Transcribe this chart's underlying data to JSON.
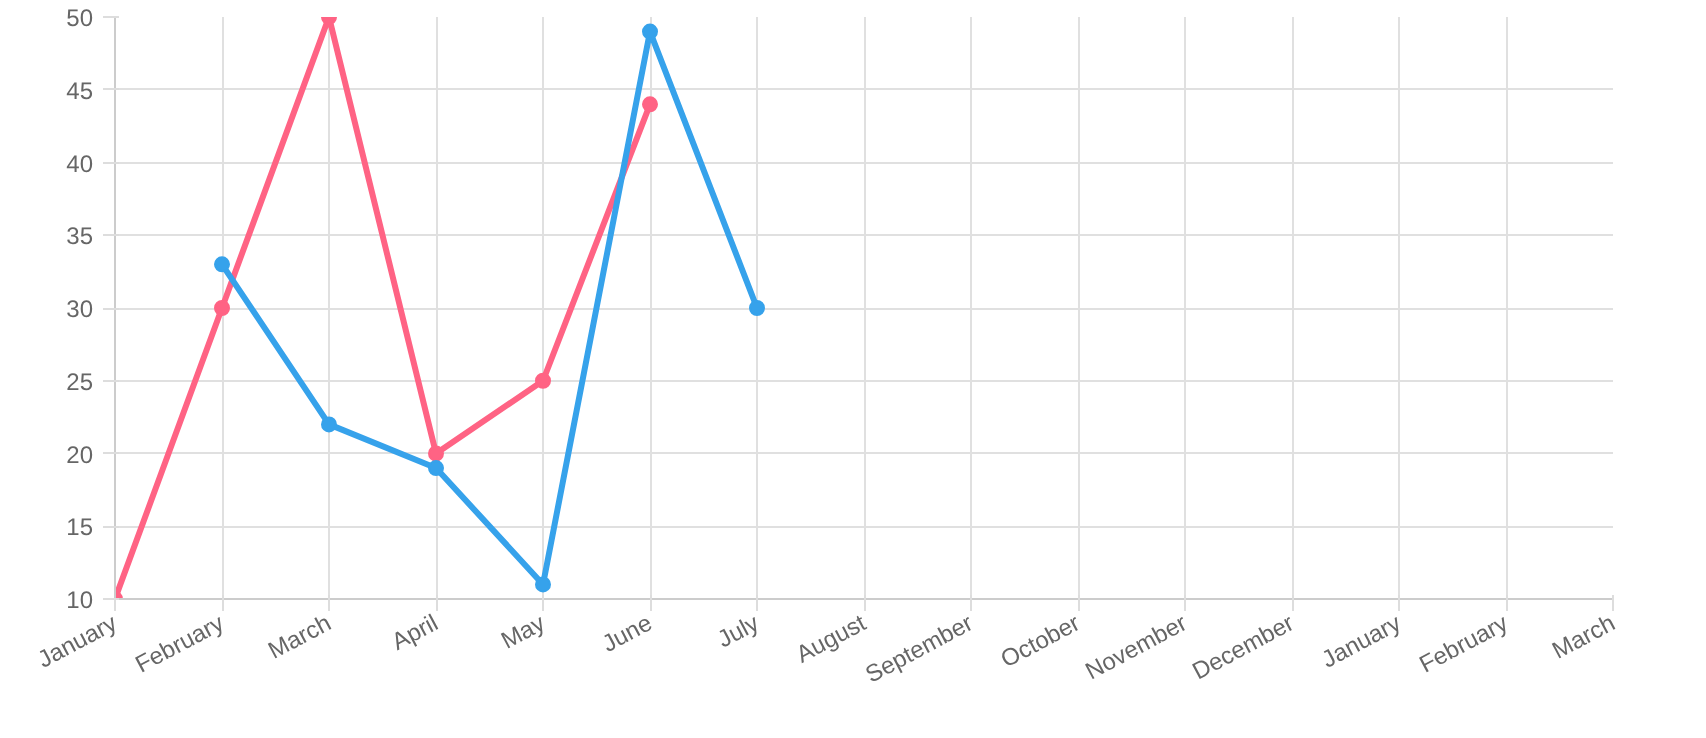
{
  "chart_data": {
    "type": "line",
    "categories": [
      "January",
      "February",
      "March",
      "April",
      "May",
      "June",
      "July",
      "August",
      "September",
      "October",
      "November",
      "December",
      "January",
      "February",
      "March"
    ],
    "series": [
      {
        "color": "#ff6384",
        "values": [
          10,
          30,
          50,
          20,
          25,
          44,
          null,
          null,
          null,
          null,
          null,
          null,
          null,
          null,
          null
        ]
      },
      {
        "color": "#36a2eb",
        "values": [
          null,
          33,
          22,
          19,
          11,
          49,
          30,
          null,
          null,
          null,
          null,
          null,
          null,
          null,
          null
        ]
      }
    ],
    "ylim": [
      10,
      50
    ],
    "yticks": [
      10,
      15,
      20,
      25,
      30,
      35,
      40,
      45,
      50
    ],
    "grid": true,
    "marker": "circle",
    "line_style": "solid"
  }
}
